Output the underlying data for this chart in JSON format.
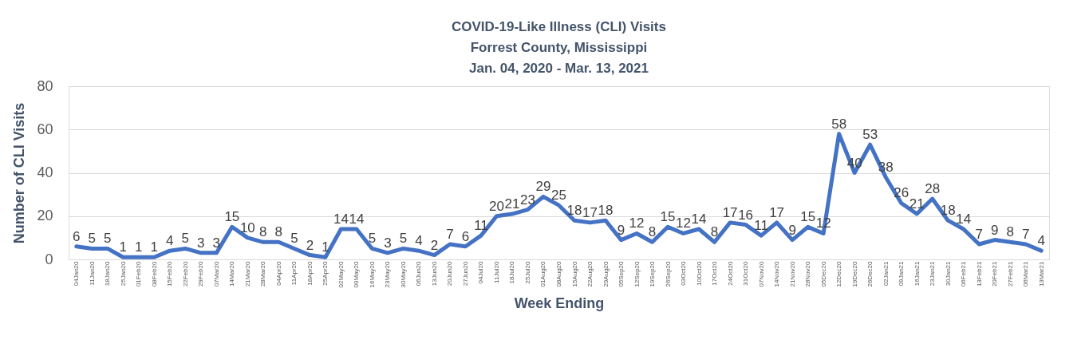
{
  "chart_data": {
    "type": "line",
    "title": [
      "COVID-19-Like Illness (CLI) Visits",
      "Forrest County, Mississippi",
      "Jan. 04, 2020 - Mar. 13, 2021"
    ],
    "xlabel": "Week Ending",
    "ylabel": "Number of CLI Visits",
    "categories": [
      "04Jan20",
      "11Jan20",
      "18Jan20",
      "25Jan20",
      "01Feb20",
      "08Feb20",
      "15Feb20",
      "22Feb20",
      "29Feb20",
      "07Mar20",
      "14Mar20",
      "21Mar20",
      "28Mar20",
      "04Apr20",
      "11Apr20",
      "18Apr20",
      "25Apr20",
      "02May20",
      "09May20",
      "16May20",
      "23May20",
      "30May20",
      "06Jun20",
      "13Jun20",
      "20Jun20",
      "27Jun20",
      "04Jul20",
      "11Jul20",
      "18Jul20",
      "25Jul20",
      "01Aug20",
      "08Aug20",
      "15Aug20",
      "22Aug20",
      "29Aug20",
      "05Sep20",
      "12Sep20",
      "19Sep20",
      "26Sep20",
      "03Oct20",
      "10Oct20",
      "17Oct20",
      "24Oct20",
      "31Oct20",
      "07Nov20",
      "14Nov20",
      "21Nov20",
      "28Nov20",
      "05Dec20",
      "12Dec20",
      "19Dec20",
      "26Dec20",
      "02Jan21",
      "09Jan21",
      "16Jan21",
      "23Jan21",
      "30Jan21",
      "06Feb21",
      "13Feb21",
      "20Feb21",
      "27Feb21",
      "06Mar21",
      "13Mar21"
    ],
    "series": [
      {
        "color": "#4472c4",
        "values": [
          6,
          5,
          5,
          1,
          1,
          1,
          4,
          5,
          3,
          3,
          15,
          10,
          8,
          8,
          5,
          2,
          1,
          14,
          14,
          5,
          3,
          5,
          4,
          2,
          7,
          6,
          11,
          20,
          21,
          23,
          29,
          25,
          18,
          17,
          18,
          9,
          12,
          8,
          15,
          12,
          14,
          8,
          17,
          16,
          11,
          17,
          9,
          15,
          12,
          58,
          40,
          53,
          38,
          26,
          21,
          28,
          18,
          14,
          7,
          9,
          8,
          7,
          4
        ]
      }
    ],
    "ylim": [
      0,
      80
    ],
    "yticks": [
      0,
      20,
      40,
      60,
      80
    ],
    "grid": "y",
    "legend": false,
    "marker": "none",
    "line_style": "solid",
    "data_labels": true
  }
}
